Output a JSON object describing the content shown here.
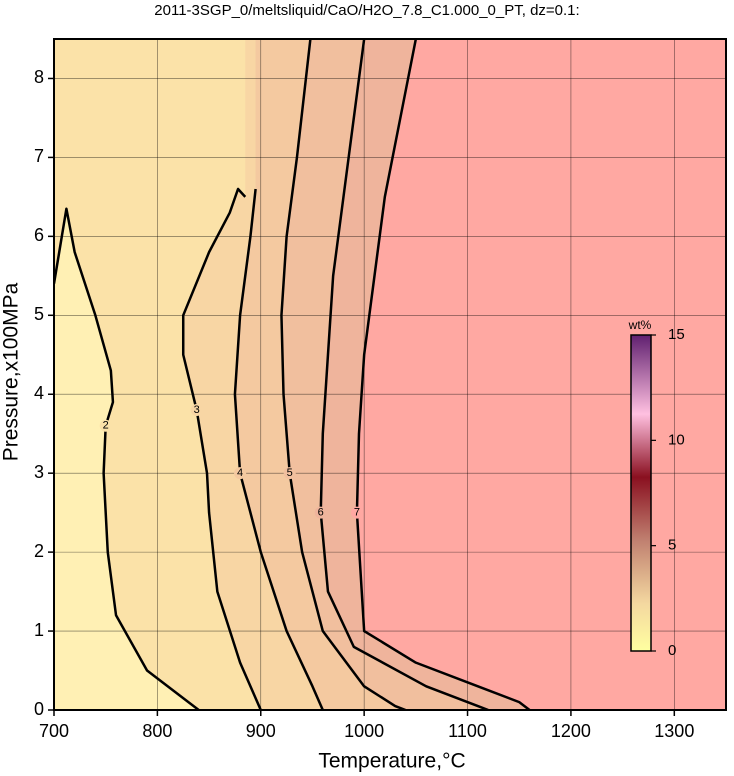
{
  "chart_data": {
    "type": "contour",
    "title": "2011-3SGP_0/meltsliquid/CaO/H2O_7.8_C1.000_0_PT, dz=0.1:",
    "x_label": "Temperature,°C",
    "y_label": "Pressure,x100MPa",
    "xlim": [
      700,
      1350
    ],
    "ylim": [
      0,
      8.5
    ],
    "xticks": [
      700,
      800,
      900,
      1000,
      1100,
      1200,
      1300
    ],
    "yticks": [
      0,
      1,
      2,
      3,
      4,
      5,
      6,
      7,
      8
    ],
    "grid": true,
    "series": [
      {
        "name": "2",
        "color": "#fbe2a8",
        "x": [
          700,
          712,
          720,
          740,
          755,
          757,
          750,
          748,
          752,
          760,
          790,
          830,
          840
        ],
        "values": [
          5.4,
          6.35,
          5.8,
          5.0,
          4.3,
          3.9,
          3.6,
          3.0,
          2.0,
          1.2,
          0.5,
          0.1,
          0
        ]
      },
      {
        "name": "3",
        "color": "#f8d6a4",
        "x": [
          885,
          878,
          870,
          850,
          825,
          825,
          838,
          848,
          850,
          858,
          880,
          900
        ],
        "values": [
          6.5,
          6.6,
          6.3,
          5.8,
          5.0,
          4.5,
          3.8,
          3.0,
          2.5,
          1.5,
          0.6,
          0
        ]
      },
      {
        "name": "4",
        "color": "#f4c9a0",
        "x": [
          895,
          890,
          880,
          875,
          880,
          900,
          925,
          950,
          960
        ],
        "values": [
          6.6,
          6.0,
          5.0,
          4.0,
          3.0,
          2.0,
          1.0,
          0.3,
          0
        ]
      },
      {
        "name": "5",
        "color": "#f1bf9e",
        "x": [
          948,
          935,
          925,
          920,
          922,
          928,
          940,
          960,
          1000,
          1030,
          1040
        ],
        "values": [
          8.5,
          7.0,
          6.0,
          5.0,
          4.0,
          3.0,
          2.0,
          1.0,
          0.3,
          0.05,
          0
        ]
      },
      {
        "name": "6",
        "color": "#efb49c",
        "x": [
          1000,
          990,
          980,
          970,
          965,
          960,
          958,
          965,
          990,
          1060,
          1110,
          1120
        ],
        "values": [
          8.5,
          7.5,
          6.5,
          5.5,
          4.5,
          3.5,
          2.5,
          1.5,
          0.8,
          0.3,
          0.05,
          0
        ]
      },
      {
        "name": "7",
        "color": "#ffa8a2",
        "x": [
          1050,
          1035,
          1020,
          1010,
          1000,
          995,
          993,
          1000,
          1050,
          1110,
          1150,
          1160
        ],
        "values": [
          8.5,
          7.5,
          6.5,
          5.5,
          4.5,
          3.5,
          2.5,
          1.0,
          0.6,
          0.3,
          0.1,
          0
        ]
      }
    ],
    "colorbar": {
      "label": "wt%",
      "lim": [
        0,
        15
      ],
      "ticks": [
        0,
        5,
        10,
        15
      ]
    }
  }
}
